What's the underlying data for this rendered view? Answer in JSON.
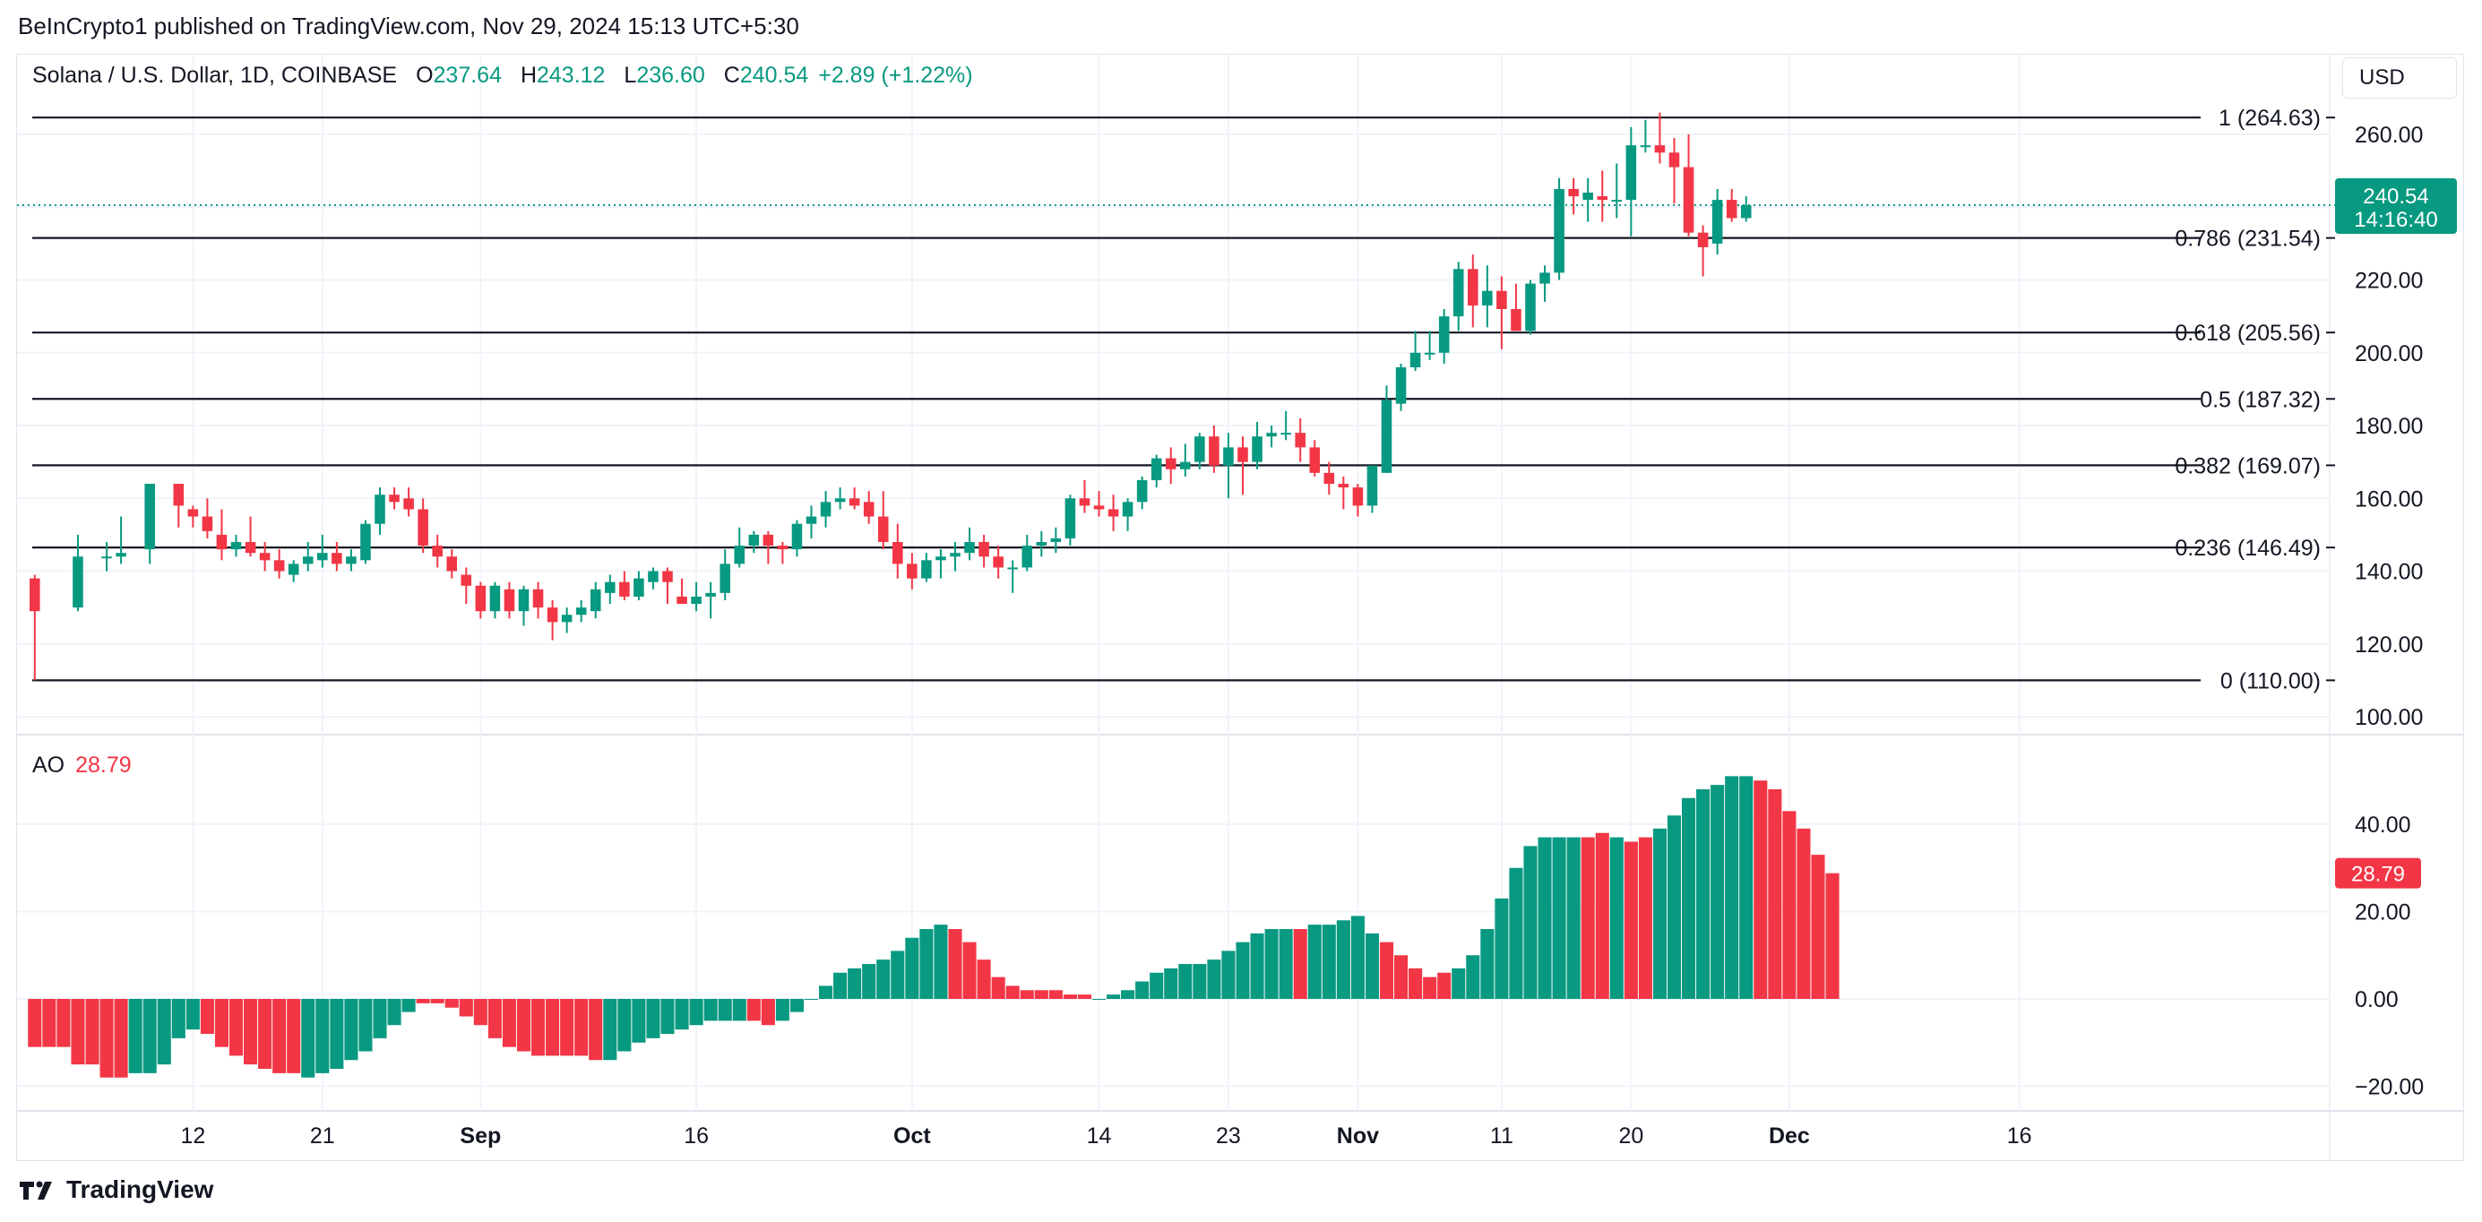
{
  "header": {
    "publisher_line": "BeInCrypto1 published on TradingView.com, Nov 29, 2024 15:13 UTC+5:30"
  },
  "legend": {
    "symbol": "Solana / U.S. Dollar, 1D, COINBASE",
    "o_label": "O",
    "o_value": "237.64",
    "h_label": "H",
    "h_value": "243.12",
    "l_label": "L",
    "l_value": "236.60",
    "c_label": "C",
    "c_value": "240.54",
    "change": "+2.89 (+1.22%)"
  },
  "currency_button": "USD",
  "price_badge": {
    "price": "240.54",
    "countdown": "14:16:40",
    "color": "#089981"
  },
  "ao_legend": {
    "name": "AO",
    "value": "28.79"
  },
  "ao_badge": {
    "value": "28.79",
    "color": "#f23645"
  },
  "footer": {
    "brand": "TradingView"
  },
  "colors": {
    "up": "#089981",
    "down": "#f23645",
    "grid": "#f0f3fa",
    "fib_line": "#131722"
  },
  "chart_data": [
    {
      "type": "candlestick",
      "title": "Solana / U.S. Dollar, 1D, COINBASE",
      "y_axis_ticks": [
        "100.00",
        "120.00",
        "140.00",
        "160.00",
        "180.00",
        "200.00",
        "220.00",
        "240.00",
        "260.00"
      ],
      "ylim": [
        96,
        268
      ],
      "x_axis_ticks": [
        {
          "label": "12",
          "day": 11,
          "bold": false
        },
        {
          "label": "21",
          "day": 20,
          "bold": false
        },
        {
          "label": "Sep",
          "day": 31,
          "bold": true
        },
        {
          "label": "16",
          "day": 46,
          "bold": false
        },
        {
          "label": "Oct",
          "day": 61,
          "bold": true
        },
        {
          "label": "14",
          "day": 74,
          "bold": false
        },
        {
          "label": "23",
          "day": 83,
          "bold": false
        },
        {
          "label": "Nov",
          "day": 92,
          "bold": true
        },
        {
          "label": "11",
          "day": 102,
          "bold": false
        },
        {
          "label": "20",
          "day": 111,
          "bold": false
        },
        {
          "label": "Dec",
          "day": 122,
          "bold": true
        },
        {
          "label": "16",
          "day": 138,
          "bold": false
        }
      ],
      "fib_levels": [
        {
          "label": "1 (264.63)",
          "value": 264.63
        },
        {
          "label": "0.786 (231.54)",
          "value": 231.54
        },
        {
          "label": "0.618 (205.56)",
          "value": 205.56
        },
        {
          "label": "0.5 (187.32)",
          "value": 187.32
        },
        {
          "label": "0.382 (169.07)",
          "value": 169.07
        },
        {
          "label": "0.236 (146.49)",
          "value": 146.49
        },
        {
          "label": "0 (110.00)",
          "value": 110.0
        }
      ],
      "last_price": 240.54,
      "candles": [
        [
          0,
          138,
          139,
          110,
          129
        ],
        [
          3,
          130,
          150,
          129,
          144
        ],
        [
          5,
          144,
          148,
          140,
          144
        ],
        [
          6,
          144,
          155,
          142,
          145
        ],
        [
          8,
          146,
          164,
          142,
          164
        ],
        [
          10,
          164,
          164,
          152,
          158
        ],
        [
          11,
          157,
          158,
          152,
          155
        ],
        [
          12,
          155,
          160,
          149,
          151
        ],
        [
          13,
          150,
          157,
          143,
          146
        ],
        [
          14,
          146,
          150,
          144,
          148
        ],
        [
          15,
          148,
          155,
          144,
          145
        ],
        [
          16,
          145,
          148,
          140,
          143
        ],
        [
          17,
          143,
          146,
          138,
          140
        ],
        [
          18,
          139,
          143,
          137,
          142
        ],
        [
          19,
          142,
          148,
          140,
          144
        ],
        [
          20,
          143,
          150,
          141,
          145
        ],
        [
          21,
          145,
          148,
          140,
          142
        ],
        [
          22,
          142,
          146,
          140,
          144
        ],
        [
          23,
          143,
          154,
          142,
          153
        ],
        [
          24,
          153,
          163,
          150,
          161
        ],
        [
          25,
          161,
          163,
          157,
          159
        ],
        [
          26,
          160,
          163,
          155,
          157
        ],
        [
          27,
          157,
          160,
          145,
          147
        ],
        [
          28,
          147,
          150,
          141,
          144
        ],
        [
          29,
          144,
          146,
          138,
          140
        ],
        [
          30,
          139,
          141,
          131,
          136
        ],
        [
          31,
          136,
          137,
          127,
          129
        ],
        [
          32,
          129,
          137,
          127,
          136
        ],
        [
          33,
          135,
          137,
          127,
          129
        ],
        [
          34,
          129,
          136,
          125,
          135
        ],
        [
          35,
          135,
          137,
          127,
          130
        ],
        [
          36,
          130,
          132,
          121,
          126
        ],
        [
          37,
          126,
          130,
          123,
          128
        ],
        [
          38,
          128,
          132,
          126,
          130
        ],
        [
          39,
          129,
          137,
          127,
          135
        ],
        [
          40,
          134,
          139,
          131,
          137
        ],
        [
          41,
          137,
          140,
          132,
          133
        ],
        [
          42,
          133,
          140,
          132,
          138
        ],
        [
          43,
          137,
          141,
          135,
          140
        ],
        [
          44,
          140,
          141,
          131,
          137
        ],
        [
          45,
          133,
          138,
          131,
          131
        ],
        [
          46,
          131,
          137,
          129,
          133
        ],
        [
          47,
          133,
          137,
          127,
          134
        ],
        [
          48,
          134,
          146,
          132,
          142
        ],
        [
          49,
          142,
          152,
          141,
          147
        ],
        [
          50,
          147,
          151,
          145,
          150
        ],
        [
          51,
          150,
          151,
          142,
          147
        ],
        [
          52,
          147,
          148,
          142,
          146
        ],
        [
          53,
          146,
          154,
          144,
          153
        ],
        [
          54,
          153,
          158,
          149,
          155
        ],
        [
          55,
          155,
          162,
          152,
          159
        ],
        [
          56,
          159,
          163,
          157,
          160
        ],
        [
          57,
          160,
          163,
          157,
          158
        ],
        [
          58,
          159,
          162,
          153,
          155
        ],
        [
          59,
          155,
          162,
          146,
          148
        ],
        [
          60,
          148,
          153,
          138,
          142
        ],
        [
          61,
          142,
          145,
          135,
          138
        ],
        [
          62,
          138,
          145,
          137,
          143
        ],
        [
          63,
          143,
          146,
          138,
          144
        ],
        [
          64,
          144,
          148,
          140,
          145
        ],
        [
          65,
          145,
          152,
          143,
          148
        ],
        [
          66,
          148,
          150,
          141,
          144
        ],
        [
          67,
          144,
          147,
          138,
          141
        ],
        [
          68,
          141,
          143,
          134,
          141
        ],
        [
          69,
          141,
          150,
          140,
          147
        ],
        [
          70,
          147,
          151,
          144,
          148
        ],
        [
          71,
          148,
          152,
          145,
          149
        ],
        [
          72,
          149,
          161,
          147,
          160
        ],
        [
          73,
          160,
          165,
          156,
          158
        ],
        [
          74,
          158,
          162,
          155,
          157
        ],
        [
          75,
          157,
          161,
          151,
          155
        ],
        [
          76,
          155,
          160,
          151,
          159
        ],
        [
          77,
          159,
          166,
          157,
          165
        ],
        [
          78,
          165,
          172,
          163,
          171
        ],
        [
          79,
          171,
          174,
          164,
          168
        ],
        [
          80,
          168,
          175,
          166,
          170
        ],
        [
          81,
          170,
          178,
          168,
          177
        ],
        [
          82,
          177,
          180,
          167,
          169
        ],
        [
          83,
          169,
          178,
          160,
          174
        ],
        [
          84,
          174,
          177,
          161,
          170
        ],
        [
          85,
          170,
          181,
          168,
          177
        ],
        [
          86,
          177,
          180,
          174,
          178
        ],
        [
          87,
          178,
          184,
          176,
          178
        ],
        [
          88,
          178,
          182,
          170,
          174
        ],
        [
          89,
          174,
          176,
          166,
          167
        ],
        [
          90,
          167,
          170,
          161,
          164
        ],
        [
          91,
          164,
          166,
          157,
          163
        ],
        [
          92,
          163,
          164,
          155,
          158
        ],
        [
          93,
          158,
          169,
          156,
          169
        ],
        [
          94,
          167,
          191,
          167,
          187
        ],
        [
          95,
          186,
          197,
          184,
          196
        ],
        [
          96,
          196,
          206,
          195,
          200
        ],
        [
          97,
          200,
          206,
          198,
          200
        ],
        [
          98,
          200,
          212,
          197,
          210
        ],
        [
          99,
          210,
          225,
          206,
          223
        ],
        [
          100,
          223,
          227,
          207,
          213
        ],
        [
          101,
          213,
          224,
          207,
          217
        ],
        [
          102,
          217,
          221,
          201,
          212
        ],
        [
          103,
          212,
          219,
          206,
          206
        ],
        [
          104,
          206,
          220,
          205,
          219
        ],
        [
          105,
          219,
          224,
          214,
          222
        ],
        [
          106,
          222,
          248,
          220,
          245
        ],
        [
          107,
          245,
          248,
          238,
          243
        ],
        [
          108,
          242,
          248,
          236,
          244
        ],
        [
          109,
          243,
          250,
          236,
          242
        ],
        [
          110,
          242,
          252,
          237,
          242
        ],
        [
          111,
          242,
          262,
          232,
          257
        ],
        [
          112,
          257,
          264,
          255,
          257
        ],
        [
          113,
          257,
          266,
          252,
          255
        ],
        [
          114,
          255,
          259,
          241,
          251
        ],
        [
          115,
          251,
          260,
          232,
          233
        ],
        [
          116,
          233,
          235,
          221,
          229
        ],
        [
          117,
          230,
          245,
          227,
          242
        ],
        [
          118,
          242,
          245,
          236,
          237
        ],
        [
          119,
          237,
          243,
          236,
          240.54
        ]
      ]
    },
    {
      "type": "bar",
      "title": "AO",
      "y_axis_ticks": [
        "−20.00",
        "0.00",
        "20.00",
        "40.00"
      ],
      "ylim": [
        -25,
        52
      ],
      "current_value": 28.79,
      "values": [
        -11,
        -11,
        -11,
        -15,
        -15,
        -18,
        -18,
        -17,
        -17,
        -15,
        -9,
        -7,
        -8,
        -11,
        -13,
        -15,
        -16,
        -17,
        -17,
        -18,
        -17,
        -16,
        -14,
        -12,
        -9,
        -6,
        -3,
        -1,
        -1,
        -2,
        -4,
        -6,
        -9,
        -11,
        -12,
        -13,
        -13,
        -13,
        -13,
        -14,
        -14,
        -12,
        -10,
        -9,
        -8,
        -7,
        -6,
        -5,
        -5,
        -5,
        -5,
        -6,
        -5,
        -3,
        0,
        3,
        6,
        7,
        8,
        9,
        11,
        14,
        16,
        17,
        16,
        13,
        9,
        5,
        3,
        2,
        2,
        2,
        1,
        1,
        0,
        1,
        2,
        4,
        6,
        7,
        8,
        8,
        9,
        11,
        13,
        15,
        16,
        16,
        16,
        17,
        17,
        18,
        19,
        15,
        13,
        10,
        7,
        5,
        6,
        7,
        10,
        16,
        23,
        30,
        35,
        37,
        37,
        37,
        37,
        38,
        37,
        36,
        37,
        39,
        42,
        46,
        48,
        49,
        51,
        51,
        50,
        48,
        43,
        39,
        33,
        28.79
      ],
      "colors": [
        "down",
        "down",
        "down",
        "down",
        "down",
        "down",
        "down",
        "up",
        "up",
        "up",
        "up",
        "up",
        "down",
        "down",
        "down",
        "down",
        "down",
        "down",
        "down",
        "up",
        "up",
        "up",
        "up",
        "up",
        "up",
        "up",
        "up",
        "down",
        "down",
        "down",
        "down",
        "down",
        "down",
        "down",
        "down",
        "down",
        "down",
        "down",
        "down",
        "down",
        "up",
        "up",
        "up",
        "up",
        "up",
        "up",
        "up",
        "up",
        "up",
        "up",
        "down",
        "down",
        "up",
        "up",
        "up",
        "up",
        "up",
        "up",
        "up",
        "up",
        "up",
        "up",
        "up",
        "up",
        "down",
        "down",
        "down",
        "down",
        "down",
        "down",
        "down",
        "down",
        "down",
        "down",
        "up",
        "up",
        "up",
        "up",
        "up",
        "up",
        "up",
        "up",
        "up",
        "up",
        "up",
        "up",
        "up",
        "up",
        "down",
        "up",
        "up",
        "up",
        "up",
        "up",
        "down",
        "down",
        "down",
        "down",
        "down",
        "up",
        "up",
        "up",
        "up",
        "up",
        "up",
        "up",
        "up",
        "up",
        "down",
        "down",
        "up",
        "down",
        "down",
        "up",
        "up",
        "up",
        "up",
        "up",
        "up",
        "up",
        "down",
        "down",
        "down",
        "down",
        "down",
        "down"
      ]
    }
  ]
}
